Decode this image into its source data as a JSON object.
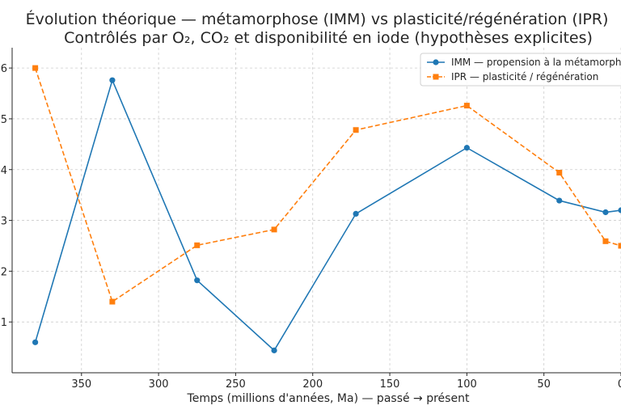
{
  "chart_data": {
    "type": "line",
    "title_line1": "Évolution théorique — métamorphose (IMM) vs plasticité/régénération (IPR)",
    "title_line2": "Contrôlés par O₂, CO₂ et disponibilité en iode (hypothèses explicites)",
    "xlabel": "Temps (millions d'années, Ma) — passé → présent",
    "ylabel": "",
    "x_reversed": true,
    "xlim": [
      395,
      0
    ],
    "ylim": [
      0.0,
      6.4
    ],
    "x_ticks": [
      350,
      300,
      250,
      200,
      150,
      100,
      50,
      0
    ],
    "y_ticks": [
      1,
      2,
      3,
      4,
      5,
      6
    ],
    "grid": true,
    "legend_position": "top-right",
    "series": [
      {
        "name": "IMM — propension à la métamorphose",
        "color": "#1f77b4",
        "line_style": "solid",
        "marker": "circle",
        "x": [
          380,
          330,
          275,
          225,
          172,
          100,
          40,
          10,
          0
        ],
        "y": [
          0.6,
          5.76,
          1.82,
          0.44,
          3.13,
          4.43,
          3.39,
          3.16,
          3.2
        ]
      },
      {
        "name": "IPR — plasticité / régénération",
        "color": "#ff7f0e",
        "line_style": "dashed",
        "marker": "square",
        "x": [
          380,
          330,
          275,
          225,
          172,
          100,
          40,
          10,
          0
        ],
        "y": [
          6.0,
          1.4,
          2.51,
          2.82,
          4.78,
          5.26,
          3.94,
          2.59,
          2.5
        ]
      }
    ]
  }
}
